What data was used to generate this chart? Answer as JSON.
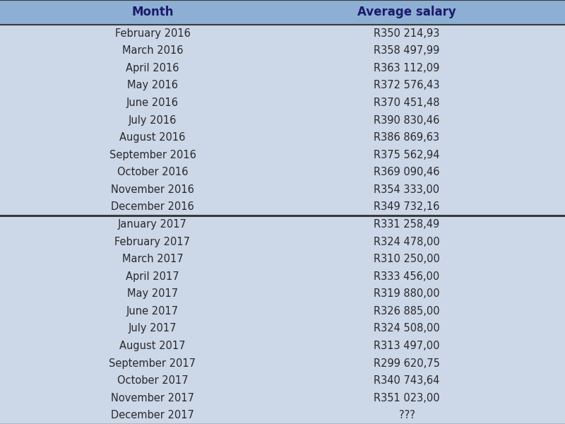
{
  "header": [
    "Month",
    "Average salary"
  ],
  "rows_2016": [
    [
      "February 2016",
      "R350 214,93"
    ],
    [
      "March 2016",
      "R358 497,99"
    ],
    [
      "April 2016",
      "R363 112,09"
    ],
    [
      "May 2016",
      "R372 576,43"
    ],
    [
      "June 2016",
      "R370 451,48"
    ],
    [
      "July 2016",
      "R390 830,46"
    ],
    [
      "August 2016",
      "R386 869,63"
    ],
    [
      "September 2016",
      "R375 562,94"
    ],
    [
      "October 2016",
      "R369 090,46"
    ],
    [
      "November 2016",
      "R354 333,00"
    ],
    [
      "December 2016",
      "R349 732,16"
    ]
  ],
  "rows_2017": [
    [
      "January 2017",
      "R331 258,49"
    ],
    [
      "February 2017",
      "R324 478,00"
    ],
    [
      "March 2017",
      "R310 250,00"
    ],
    [
      "April 2017",
      "R333 456,00"
    ],
    [
      "May 2017",
      "R319 880,00"
    ],
    [
      "June 2017",
      "R326 885,00"
    ],
    [
      "July 2017",
      "R324 508,00"
    ],
    [
      "August 2017",
      "R313 497,00"
    ],
    [
      "September 2017",
      "R299 620,75"
    ],
    [
      "October 2017",
      "R340 743,64"
    ],
    [
      "November 2017",
      "R351 023,00"
    ],
    [
      "December 2017",
      "???"
    ]
  ],
  "bg_color": "#ccd7e8",
  "header_bg_color": "#8dafd3",
  "divider_color": "#3a3a3a",
  "text_color": "#2a2a2a",
  "header_text_color": "#1a1a6e",
  "font_size": 10.5,
  "header_font_size": 12
}
